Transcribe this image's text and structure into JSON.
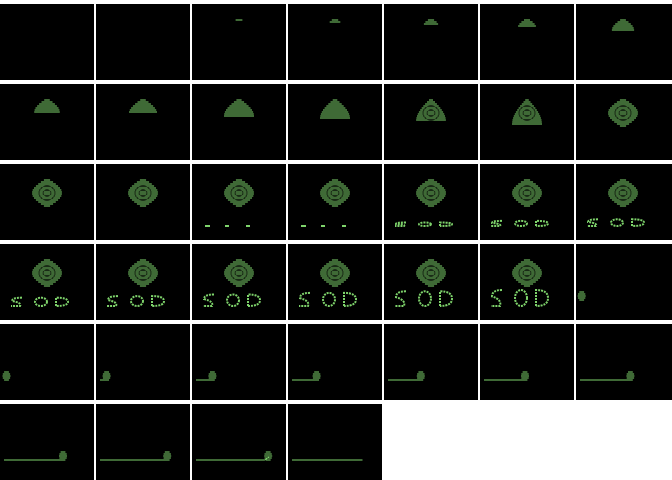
{
  "sheet": {
    "columns": 7,
    "rows": 6,
    "background": "#ffffff",
    "frame_color": "#000000",
    "phosphor_color": "#7ed36b"
  },
  "frames": [
    {
      "blob": 0,
      "letters": 0,
      "ball": null,
      "line": 0,
      "trail": false
    },
    {
      "blob": 0.05,
      "letters": 0,
      "ball": null,
      "line": 0,
      "trail": false
    },
    {
      "blob": 0.1,
      "letters": 0,
      "ball": null,
      "line": 0,
      "trail": false
    },
    {
      "blob": 0.17,
      "letters": 0,
      "ball": null,
      "line": 0,
      "trail": false
    },
    {
      "blob": 0.25,
      "letters": 0,
      "ball": null,
      "line": 0,
      "trail": false
    },
    {
      "blob": 0.32,
      "letters": 0,
      "ball": null,
      "line": 0,
      "trail": false
    },
    {
      "blob": 0.4,
      "letters": 0,
      "ball": null,
      "line": 0,
      "trail": false
    },
    {
      "blob": 0.47,
      "letters": 0,
      "ball": null,
      "line": 0,
      "trail": false
    },
    {
      "blob": 0.53,
      "letters": 0,
      "ball": null,
      "line": 0,
      "trail": false
    },
    {
      "blob": 0.6,
      "letters": 0,
      "ball": null,
      "line": 0,
      "trail": false
    },
    {
      "blob": 0.68,
      "letters": 0,
      "ball": null,
      "line": 0,
      "trail": false
    },
    {
      "blob": 0.78,
      "letters": 0,
      "ball": null,
      "line": 0,
      "trail": false
    },
    {
      "blob": 0.88,
      "letters": 0,
      "ball": null,
      "line": 0,
      "trail": false
    },
    {
      "blob": 0.95,
      "letters": 0,
      "ball": null,
      "line": 0,
      "trail": false
    },
    {
      "blob": 1,
      "letters": 0,
      "ball": null,
      "line": 0,
      "trail": false
    },
    {
      "blob": 1,
      "letters": 0,
      "ball": null,
      "line": 0,
      "trail": false
    },
    {
      "blob": 1,
      "letters": 0.05,
      "ball": null,
      "line": 0,
      "trail": false
    },
    {
      "blob": 1,
      "letters": 0.12,
      "ball": null,
      "line": 0,
      "trail": false
    },
    {
      "blob": 1,
      "letters": 0.22,
      "ball": null,
      "line": 0,
      "trail": false
    },
    {
      "blob": 1,
      "letters": 0.32,
      "ball": null,
      "line": 0,
      "trail": false
    },
    {
      "blob": 1,
      "letters": 0.42,
      "ball": null,
      "line": 0,
      "trail": false
    },
    {
      "blob": 1,
      "letters": 0.52,
      "ball": null,
      "line": 0,
      "trail": false
    },
    {
      "blob": 1,
      "letters": 0.62,
      "ball": null,
      "line": 0,
      "trail": false
    },
    {
      "blob": 1,
      "letters": 0.72,
      "ball": null,
      "line": 0,
      "trail": false
    },
    {
      "blob": 1,
      "letters": 0.82,
      "ball": null,
      "line": 0,
      "trail": false
    },
    {
      "blob": 1,
      "letters": 0.92,
      "ball": null,
      "line": 0,
      "trail": false
    },
    {
      "blob": 1,
      "letters": 1,
      "ball": null,
      "line": 0,
      "trail": false
    },
    {
      "blob": 0,
      "letters": 0,
      "ball": 0.02,
      "line": 0,
      "trail": false
    },
    {
      "blob": 0,
      "letters": 0,
      "ball": 0.03,
      "line": 0,
      "trail": false
    },
    {
      "blob": 0,
      "letters": 0,
      "ball": 0.08,
      "line": 0.08,
      "trail": false
    },
    {
      "blob": 0,
      "letters": 0,
      "ball": 0.2,
      "line": 0.2,
      "trail": false
    },
    {
      "blob": 0,
      "letters": 0,
      "ball": 0.3,
      "line": 0.3,
      "trail": false
    },
    {
      "blob": 0,
      "letters": 0,
      "ball": 0.4,
      "line": 0.4,
      "trail": false
    },
    {
      "blob": 0,
      "letters": 0,
      "ball": 0.5,
      "line": 0.5,
      "trail": false
    },
    {
      "blob": 0,
      "letters": 0,
      "ball": 0.6,
      "line": 0.6,
      "trail": false
    },
    {
      "blob": 0,
      "letters": 0,
      "ball": 0.72,
      "line": 0.72,
      "trail": false
    },
    {
      "blob": 0,
      "letters": 0,
      "ball": 0.82,
      "line": 0.82,
      "trail": false
    },
    {
      "blob": 0,
      "letters": 0,
      "ball": 0.88,
      "line": 0.84,
      "trail": true
    },
    {
      "blob": 0,
      "letters": 0,
      "ball": null,
      "line": 0.86,
      "trail": false
    }
  ]
}
